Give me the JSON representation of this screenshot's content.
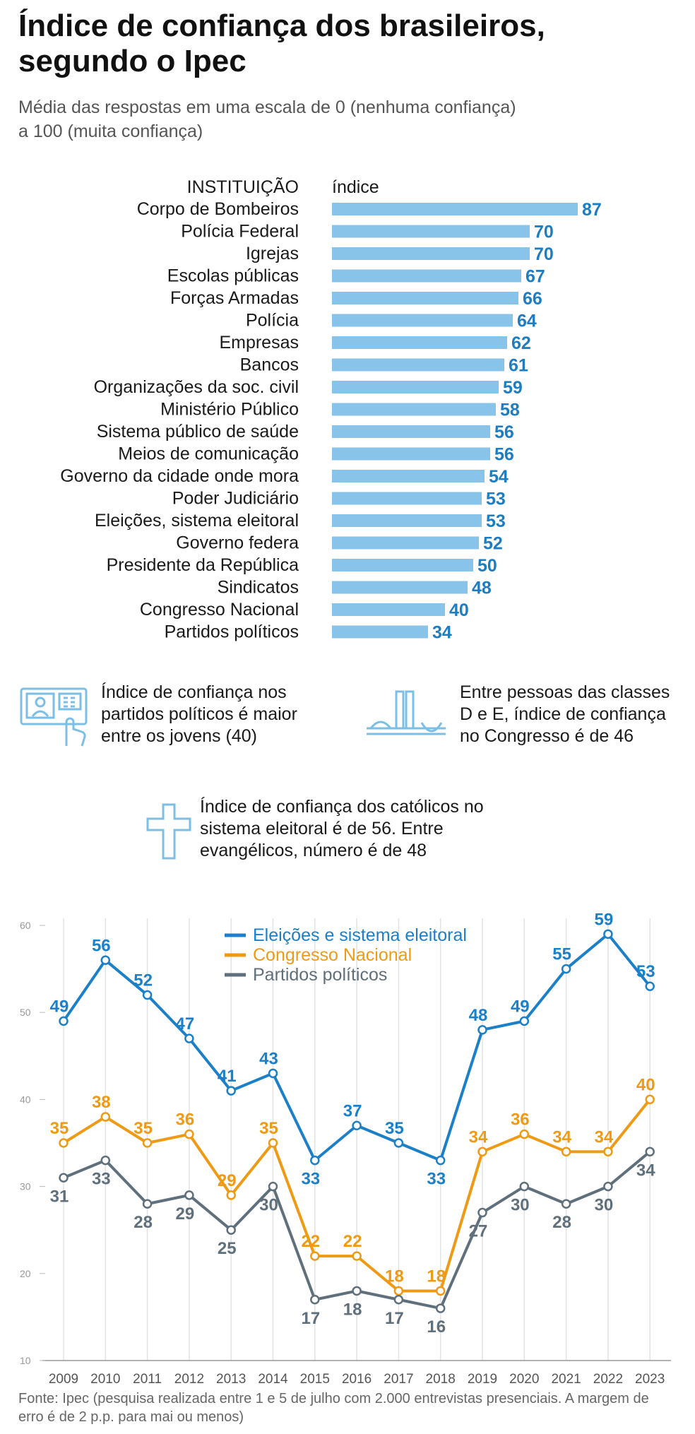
{
  "title": "Índice de confiança dos brasileiros, segundo o Ipec",
  "subtitle": "Média das respostas em uma escala de 0 (nenhuma confiança) a 100 (muita confiança)",
  "colors": {
    "bar": "#88c4ea",
    "bar_label": "#1d7dc2",
    "eleicoes": "#1b80c8",
    "congresso": "#ee9a14",
    "partidos": "#5f6f7b",
    "icon": "#7bbfe6"
  },
  "callouts": {
    "partidos": "Índice de confiança nos partidos políticos é maior entre os jovens (40)",
    "congresso": "Entre pessoas das classes D e E, índice de confiança no Congresso é de 46",
    "catolicos": "Índice de confiança dos católicos no sistema eleitoral é de 56. Entre evangélicos, número é de 48"
  },
  "icons": {
    "partidos": "voting-machine-icon",
    "congresso": "congress-building-icon",
    "catolicos": "cross-icon"
  },
  "source": "Fonte: Ipec (pesquisa realizada entre 1 e 5 de julho com 2.000 entrevistas presenciais. A margem de erro é de 2 p.p. para mai ou menos)",
  "chart_data": [
    {
      "type": "bar",
      "orientation": "horizontal",
      "category_header": "INSTITUIÇÃO",
      "value_header": "índice",
      "xlim": [
        0,
        100
      ],
      "categories": [
        "Corpo de Bombeiros",
        "Polícia Federal",
        "Igrejas",
        "Escolas públicas",
        "Forças Armadas",
        "Polícia",
        "Empresas",
        "Bancos",
        "Organizações da soc. civil",
        "Ministério Público",
        "Sistema público de saúde",
        "Meios de comunicação",
        "Governo da cidade onde mora",
        "Poder Judiciário",
        "Eleições, sistema eleitoral",
        "Governo federa",
        "Presidente da República",
        "Sindicatos",
        "Congresso Nacional",
        "Partidos políticos"
      ],
      "values": [
        87,
        70,
        70,
        67,
        66,
        64,
        62,
        61,
        59,
        58,
        56,
        56,
        54,
        53,
        53,
        52,
        50,
        48,
        40,
        34
      ]
    },
    {
      "type": "line",
      "x": [
        2009,
        2010,
        2011,
        2012,
        2013,
        2014,
        2015,
        2016,
        2017,
        2018,
        2019,
        2020,
        2021,
        2022,
        2023
      ],
      "ylim": [
        10,
        60
      ],
      "yticks": [
        10,
        20,
        30,
        40,
        50,
        60
      ],
      "grid": "vertical",
      "legend": "top-center",
      "series": [
        {
          "name": "Eleições e sistema eleitoral",
          "key": "eleicoes",
          "values": [
            49,
            56,
            52,
            47,
            41,
            43,
            33,
            37,
            35,
            33,
            48,
            49,
            55,
            59,
            53
          ]
        },
        {
          "name": "Congresso Nacional",
          "key": "congresso",
          "values": [
            35,
            38,
            35,
            36,
            29,
            35,
            22,
            22,
            18,
            18,
            34,
            36,
            34,
            34,
            40
          ]
        },
        {
          "name": "Partidos políticos",
          "key": "partidos",
          "values": [
            31,
            33,
            28,
            29,
            25,
            30,
            17,
            18,
            17,
            16,
            27,
            30,
            28,
            30,
            34
          ]
        }
      ]
    }
  ]
}
